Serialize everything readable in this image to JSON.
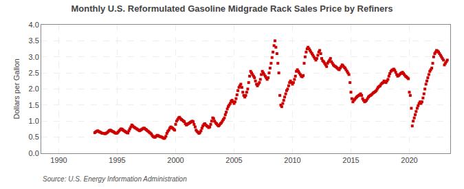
{
  "chart_data": {
    "type": "scatter",
    "title": "Monthly U.S. Reformulated Gasoline Midgrade Rack Sales Price by Refiners",
    "y_label": "Dollars per Gallon",
    "annotations": [
      "Source: U.S. Energy Information Administration"
    ],
    "color": "#cc0000",
    "marker": "square",
    "grid": true,
    "xlim": [
      1988.5,
      2023.5
    ],
    "xticks": [
      1990,
      1995,
      2000,
      2005,
      2010,
      2015,
      2020
    ],
    "ylim": [
      0.0,
      4.0
    ],
    "yticks": [
      {
        "value": 0.0,
        "label": "0.0"
      },
      0.5,
      {
        "value": 1.0,
        "label": "1.0"
      },
      1.5,
      {
        "value": 2.0,
        "label": "2.0"
      },
      2.5,
      {
        "value": 3.0,
        "label": "3.0"
      },
      3.5,
      {
        "value": 4.0,
        "label": "4.0"
      }
    ],
    "x": [
      1993.08,
      1993.17,
      1993.25,
      1993.33,
      1993.42,
      1993.5,
      1993.58,
      1993.67,
      1993.75,
      1993.83,
      1993.92,
      1994.0,
      1994.08,
      1994.17,
      1994.25,
      1994.33,
      1994.42,
      1994.5,
      1994.58,
      1994.67,
      1994.75,
      1994.83,
      1994.92,
      1995.0,
      1995.08,
      1995.17,
      1995.25,
      1995.33,
      1995.42,
      1995.5,
      1995.58,
      1995.67,
      1995.75,
      1995.83,
      1995.92,
      1996.0,
      1996.08,
      1996.17,
      1996.25,
      1996.33,
      1996.42,
      1996.5,
      1996.58,
      1996.67,
      1996.75,
      1996.83,
      1996.92,
      1997.0,
      1997.08,
      1997.17,
      1997.25,
      1997.33,
      1997.42,
      1997.5,
      1997.58,
      1997.67,
      1997.75,
      1997.83,
      1997.92,
      1998.0,
      1998.08,
      1998.17,
      1998.25,
      1998.33,
      1998.42,
      1998.5,
      1998.58,
      1998.67,
      1998.75,
      1998.83,
      1998.92,
      1999.0,
      1999.08,
      1999.17,
      1999.25,
      1999.33,
      1999.42,
      1999.5,
      1999.58,
      1999.67,
      1999.75,
      1999.83,
      1999.92,
      2000.0,
      2000.08,
      2000.17,
      2000.25,
      2000.33,
      2000.42,
      2000.5,
      2000.58,
      2000.67,
      2000.75,
      2000.83,
      2000.92,
      2001.0,
      2001.08,
      2001.17,
      2001.25,
      2001.33,
      2001.42,
      2001.5,
      2001.58,
      2001.67,
      2001.75,
      2001.83,
      2001.92,
      2002.0,
      2002.08,
      2002.17,
      2002.25,
      2002.33,
      2002.42,
      2002.5,
      2002.58,
      2002.67,
      2002.75,
      2002.83,
      2002.92,
      2003.0,
      2003.08,
      2003.17,
      2003.25,
      2003.33,
      2003.42,
      2003.5,
      2003.58,
      2003.67,
      2003.75,
      2003.83,
      2003.92,
      2004.0,
      2004.08,
      2004.17,
      2004.25,
      2004.33,
      2004.42,
      2004.5,
      2004.58,
      2004.67,
      2004.75,
      2004.83,
      2004.92,
      2005.0,
      2005.08,
      2005.17,
      2005.25,
      2005.33,
      2005.42,
      2005.5,
      2005.58,
      2005.67,
      2005.75,
      2005.83,
      2005.92,
      2006.0,
      2006.08,
      2006.17,
      2006.25,
      2006.33,
      2006.42,
      2006.5,
      2006.58,
      2006.67,
      2006.75,
      2006.83,
      2006.92,
      2007.0,
      2007.08,
      2007.17,
      2007.25,
      2007.33,
      2007.42,
      2007.5,
      2007.58,
      2007.67,
      2007.75,
      2007.83,
      2007.92,
      2008.0,
      2008.08,
      2008.17,
      2008.25,
      2008.33,
      2008.42,
      2008.5,
      2008.58,
      2008.67,
      2008.75,
      2008.83,
      2008.92,
      2009.0,
      2009.08,
      2009.17,
      2009.25,
      2009.33,
      2009.42,
      2009.5,
      2009.58,
      2009.67,
      2009.75,
      2009.83,
      2009.92,
      2010.0,
      2010.08,
      2010.17,
      2010.25,
      2010.33,
      2010.42,
      2010.5,
      2010.58,
      2010.67,
      2010.75,
      2010.83,
      2010.92,
      2011.0,
      2011.08,
      2011.17,
      2011.25,
      2011.33,
      2011.42,
      2011.5,
      2011.58,
      2011.67,
      2011.75,
      2011.83,
      2011.92,
      2012.0,
      2012.08,
      2012.17,
      2012.25,
      2012.33,
      2012.42,
      2012.5,
      2012.58,
      2012.67,
      2012.75,
      2012.83,
      2012.92,
      2013.0,
      2013.08,
      2013.17,
      2013.25,
      2013.33,
      2013.42,
      2013.5,
      2013.58,
      2013.67,
      2013.75,
      2013.83,
      2013.92,
      2014.0,
      2014.08,
      2014.17,
      2014.25,
      2014.33,
      2014.42,
      2014.5,
      2014.58,
      2014.67,
      2014.75,
      2014.83,
      2014.92,
      2015.0,
      2015.08,
      2015.17,
      2015.25,
      2015.33,
      2015.42,
      2015.5,
      2015.58,
      2015.67,
      2015.75,
      2015.83,
      2015.92,
      2016.0,
      2016.08,
      2016.17,
      2016.25,
      2016.33,
      2016.42,
      2016.5,
      2016.58,
      2016.67,
      2016.75,
      2016.83,
      2016.92,
      2017.0,
      2017.08,
      2017.17,
      2017.25,
      2017.33,
      2017.42,
      2017.5,
      2017.58,
      2017.67,
      2017.75,
      2017.83,
      2017.92,
      2018.0,
      2018.08,
      2018.17,
      2018.25,
      2018.33,
      2018.42,
      2018.5,
      2018.58,
      2018.67,
      2018.75,
      2018.83,
      2018.92,
      2019.0,
      2019.08,
      2019.17,
      2019.25,
      2019.33,
      2019.42,
      2019.5,
      2019.58,
      2019.67,
      2019.75,
      2019.83,
      2019.92,
      2020.0,
      2020.08,
      2020.17,
      2020.25,
      2020.33,
      2020.42,
      2020.5,
      2020.58,
      2020.67,
      2020.75,
      2020.83,
      2020.92,
      2021.0,
      2021.08,
      2021.17,
      2021.25,
      2021.33,
      2021.42,
      2021.5,
      2021.58,
      2021.67,
      2021.75,
      2021.83,
      2021.92,
      2022.0,
      2022.08,
      2022.17,
      2022.25,
      2022.33,
      2022.42,
      2022.5,
      2022.58,
      2022.67,
      2022.75,
      2022.83,
      2022.92,
      2023.0,
      2023.08,
      2023.17,
      2023.25
    ],
    "values": [
      0.64,
      0.67,
      0.68,
      0.7,
      0.68,
      0.66,
      0.65,
      0.63,
      0.62,
      0.62,
      0.61,
      0.61,
      0.63,
      0.65,
      0.68,
      0.71,
      0.72,
      0.7,
      0.68,
      0.67,
      0.65,
      0.63,
      0.62,
      0.63,
      0.66,
      0.7,
      0.73,
      0.76,
      0.75,
      0.72,
      0.7,
      0.68,
      0.66,
      0.64,
      0.63,
      0.7,
      0.76,
      0.82,
      0.88,
      0.85,
      0.82,
      0.8,
      0.78,
      0.76,
      0.74,
      0.72,
      0.7,
      0.72,
      0.74,
      0.76,
      0.78,
      0.78,
      0.75,
      0.73,
      0.7,
      0.68,
      0.65,
      0.63,
      0.6,
      0.55,
      0.52,
      0.5,
      0.5,
      0.53,
      0.56,
      0.55,
      0.53,
      0.52,
      0.51,
      0.5,
      0.48,
      0.46,
      0.48,
      0.53,
      0.62,
      0.68,
      0.72,
      0.78,
      0.82,
      0.8,
      0.78,
      0.75,
      0.72,
      0.9,
      1.0,
      1.05,
      1.1,
      1.12,
      1.08,
      1.05,
      1.03,
      1.0,
      0.98,
      0.92,
      0.88,
      0.9,
      0.92,
      0.94,
      0.96,
      0.98,
      1.0,
      0.98,
      0.9,
      0.82,
      0.72,
      0.68,
      0.65,
      0.62,
      0.65,
      0.7,
      0.78,
      0.85,
      0.9,
      0.92,
      0.88,
      0.85,
      0.83,
      0.8,
      0.82,
      0.9,
      1.0,
      1.1,
      1.08,
      1.0,
      0.95,
      0.92,
      0.88,
      0.85,
      0.88,
      0.92,
      0.95,
      1.0,
      1.05,
      1.1,
      1.2,
      1.28,
      1.38,
      1.45,
      1.5,
      1.55,
      1.62,
      1.65,
      1.6,
      1.55,
      1.6,
      1.7,
      1.82,
      1.95,
      2.05,
      2.1,
      2.15,
      2.05,
      1.9,
      1.8,
      1.75,
      1.8,
      1.9,
      2.0,
      2.2,
      2.4,
      2.55,
      2.5,
      2.45,
      2.4,
      2.35,
      2.25,
      2.15,
      2.1,
      2.15,
      2.2,
      2.3,
      2.45,
      2.55,
      2.5,
      2.45,
      2.4,
      2.35,
      2.3,
      2.35,
      2.5,
      2.65,
      2.8,
      2.98,
      3.15,
      3.35,
      3.5,
      3.3,
      3.1,
      2.8,
      2.5,
      1.8,
      1.5,
      1.45,
      1.55,
      1.65,
      1.75,
      1.85,
      1.95,
      2.0,
      2.1,
      2.2,
      2.25,
      2.2,
      2.15,
      2.2,
      2.3,
      2.4,
      2.55,
      2.6,
      2.55,
      2.5,
      2.45,
      2.4,
      2.38,
      2.42,
      2.8,
      3.0,
      3.15,
      3.25,
      3.3,
      3.25,
      3.2,
      3.15,
      3.1,
      3.05,
      3.0,
      2.95,
      2.9,
      2.95,
      3.05,
      3.15,
      3.2,
      3.1,
      2.95,
      2.88,
      2.85,
      2.8,
      2.75,
      2.7,
      2.8,
      2.85,
      2.9,
      2.95,
      2.85,
      2.8,
      2.75,
      2.72,
      2.7,
      2.68,
      2.65,
      2.62,
      2.6,
      2.65,
      2.7,
      2.75,
      2.72,
      2.68,
      2.65,
      2.6,
      2.55,
      2.5,
      2.45,
      2.2,
      1.9,
      1.7,
      1.6,
      1.65,
      1.68,
      1.72,
      1.75,
      1.78,
      1.8,
      1.82,
      1.85,
      1.8,
      1.7,
      1.65,
      1.6,
      1.62,
      1.65,
      1.7,
      1.75,
      1.78,
      1.8,
      1.82,
      1.85,
      1.88,
      1.9,
      1.92,
      1.95,
      2.0,
      2.05,
      2.08,
      2.1,
      2.15,
      2.18,
      2.2,
      2.25,
      2.22,
      2.2,
      2.25,
      2.3,
      2.4,
      2.48,
      2.55,
      2.58,
      2.6,
      2.62,
      2.58,
      2.52,
      2.45,
      2.4,
      2.42,
      2.45,
      2.48,
      2.5,
      2.52,
      2.48,
      2.44,
      2.4,
      2.38,
      2.35,
      2.32,
      1.9,
      1.8,
      1.4,
      0.85,
      1.0,
      1.1,
      1.2,
      1.3,
      1.4,
      1.48,
      1.55,
      1.6,
      1.55,
      1.6,
      1.72,
      1.85,
      2.0,
      2.15,
      2.25,
      2.35,
      2.45,
      2.55,
      2.6,
      2.65,
      2.8,
      3.0,
      3.1,
      3.15,
      3.2,
      3.18,
      3.15,
      3.1,
      3.05,
      3.0,
      2.95,
      2.9,
      2.75,
      2.8,
      2.85,
      2.9
    ]
  }
}
